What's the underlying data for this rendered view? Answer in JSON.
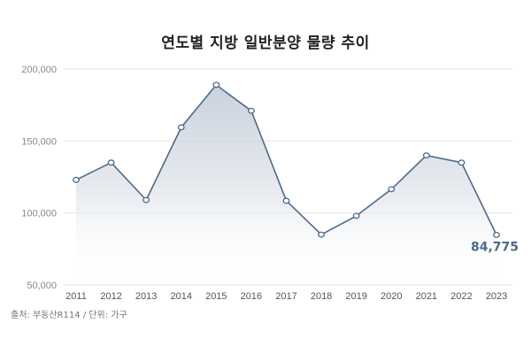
{
  "title": "연도별 지방 일반분양 물량 추이",
  "source": "출처: 부동산R114 / 단위: 가구",
  "colors": {
    "line": "#4d6a8a",
    "fill_top": "#c9d1dc",
    "grid": "#e6e6e6",
    "label": "#4d6a8a"
  },
  "chart_data": {
    "type": "area",
    "title": "연도별 지방 일반분양 물량 추이",
    "xlabel": "",
    "ylabel": "",
    "unit": "가구",
    "categories": [
      "2011",
      "2012",
      "2013",
      "2014",
      "2015",
      "2016",
      "2017",
      "2018",
      "2019",
      "2020",
      "2021",
      "2022",
      "2023"
    ],
    "values": [
      123000,
      135000,
      109000,
      159500,
      189000,
      171000,
      108500,
      85000,
      98000,
      116500,
      140000,
      135000,
      84775
    ],
    "yticks": [
      50000,
      100000,
      150000,
      200000
    ],
    "ytick_labels": [
      "50,000",
      "100,000",
      "150,000",
      "200,000"
    ],
    "ylim": [
      50000,
      200000
    ],
    "grid": true,
    "legend": null,
    "annotations": [
      {
        "x": "2023",
        "text": "84,775"
      }
    ]
  }
}
